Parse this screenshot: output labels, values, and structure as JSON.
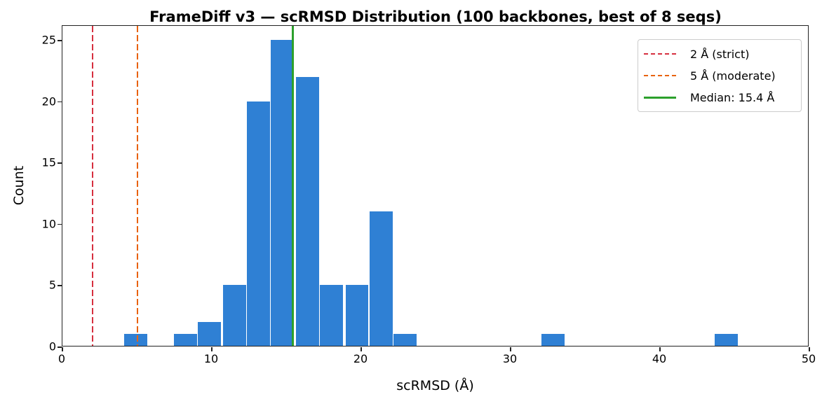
{
  "chart_data": {
    "type": "bar",
    "title": "FrameDiff v3 — scRMSD Distribution (100 backbones, best of 8 seqs)",
    "xlabel": "scRMSD (Å)",
    "ylabel": "Count",
    "xlim": [
      0,
      50
    ],
    "ylim": [
      0,
      26.2
    ],
    "xticks": [
      "0",
      "10",
      "20",
      "30",
      "40",
      "50"
    ],
    "yticks": [
      "0",
      "5",
      "10",
      "15",
      "20",
      "25"
    ],
    "bin_width": 1.64,
    "bins": [
      {
        "start": 4.1,
        "count": 1
      },
      {
        "start": 7.4,
        "count": 1
      },
      {
        "start": 9.0,
        "count": 2
      },
      {
        "start": 10.7,
        "count": 5
      },
      {
        "start": 12.3,
        "count": 20
      },
      {
        "start": 13.9,
        "count": 25
      },
      {
        "start": 15.6,
        "count": 22
      },
      {
        "start": 17.2,
        "count": 5
      },
      {
        "start": 18.9,
        "count": 5
      },
      {
        "start": 20.5,
        "count": 11
      },
      {
        "start": 22.1,
        "count": 1
      },
      {
        "start": 32.0,
        "count": 1
      },
      {
        "start": 43.6,
        "count": 1
      }
    ],
    "reference_lines": [
      {
        "x": 2,
        "label": "2 Å (strict)",
        "color": "#d62f3f",
        "style": "dashed"
      },
      {
        "x": 5,
        "label": "5 Å (moderate)",
        "color": "#e8620f",
        "style": "dashed"
      },
      {
        "x": 15.4,
        "label": "Median: 15.4 Å",
        "color": "#2ca02c",
        "style": "solid"
      }
    ],
    "bar_color": "#2f80d4",
    "legend_position": "upper right",
    "grid": false
  }
}
